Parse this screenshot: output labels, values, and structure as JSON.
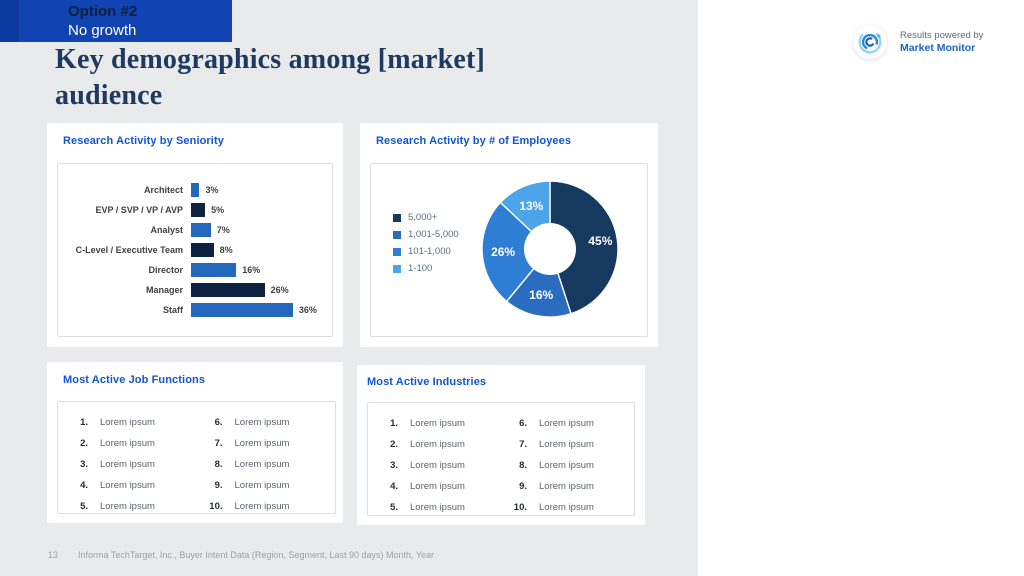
{
  "banner": {
    "title": "Option #2",
    "subtitle": "No growth"
  },
  "page_title": "Key demographics among [market] audience",
  "powered_by": {
    "prefix": "Results powered by",
    "brand": "Market Monitor"
  },
  "cards": {
    "seniority": {
      "title": "Research Activity by Seniority"
    },
    "employees": {
      "title": "Research Activity by # of Employees"
    },
    "job_functions": {
      "title": "Most Active Job Functions",
      "items": [
        {
          "n": "1.",
          "label": "Lorem ipsum"
        },
        {
          "n": "2.",
          "label": "Lorem ipsum"
        },
        {
          "n": "3.",
          "label": "Lorem ipsum"
        },
        {
          "n": "4.",
          "label": "Lorem ipsum"
        },
        {
          "n": "5.",
          "label": "Lorem ipsum"
        },
        {
          "n": "6.",
          "label": "Lorem ipsum"
        },
        {
          "n": "7.",
          "label": "Lorem ipsum"
        },
        {
          "n": "8.",
          "label": "Lorem ipsum"
        },
        {
          "n": "9.",
          "label": "Lorem ipsum"
        },
        {
          "n": "10.",
          "label": "Lorem ipsum"
        }
      ]
    },
    "industries": {
      "title": "Most Active Industries",
      "items": [
        {
          "n": "1.",
          "label": "Lorem ipsum"
        },
        {
          "n": "2.",
          "label": "Lorem ipsum"
        },
        {
          "n": "3.",
          "label": "Lorem ipsum"
        },
        {
          "n": "4.",
          "label": "Lorem ipsum"
        },
        {
          "n": "5.",
          "label": "Lorem ipsum"
        },
        {
          "n": "6.",
          "label": "Lorem ipsum"
        },
        {
          "n": "7.",
          "label": "Lorem ipsum"
        },
        {
          "n": "8.",
          "label": "Lorem ipsum"
        },
        {
          "n": "9.",
          "label": "Lorem ipsum"
        },
        {
          "n": "10.",
          "label": "Lorem ipsum"
        }
      ]
    }
  },
  "chart_data": [
    {
      "type": "bar",
      "orientation": "horizontal",
      "title": "Research Activity by Seniority",
      "categories": [
        "Architect",
        "EVP / SVP / VP / AVP",
        "Analyst",
        "C-Level / Executive Team",
        "Director",
        "Manager",
        "Staff"
      ],
      "values": [
        3,
        5,
        7,
        8,
        16,
        26,
        36
      ],
      "value_suffix": "%",
      "data_labels": true,
      "axes_visible": false,
      "xlim": [
        0,
        40
      ],
      "bar_colors_alternating": [
        "#2368bd",
        "#0e2342"
      ]
    },
    {
      "type": "pie",
      "subtype": "donut",
      "title": "Research Activity by # of Employees",
      "labels": [
        "5,000+",
        "1,001-5,000",
        "101-1,000",
        "1-100"
      ],
      "values": [
        45,
        16,
        26,
        13
      ],
      "colors": [
        "#15395f",
        "#2a6cbf",
        "#2d7ed4",
        "#4ca4ea"
      ],
      "value_suffix": "%",
      "legend_position": "left",
      "start_angle_deg": 0,
      "direction": "clockwise"
    }
  ],
  "footer": {
    "page_number": "13",
    "source": "Informa TechTarget, Inc., Buyer Intent Data (Region, Segment, Last 90 days) Month, Year"
  },
  "colors": {
    "slide_background": "#e9eaeb",
    "right_margin_background": "#ffffff",
    "banner_blue": "#1243b2",
    "card_title_blue": "#1155d4",
    "title_navy": "#1e3a60",
    "bar_medium_blue": "#2368bd",
    "bar_dark_navy": "#0e2342",
    "footer_gray": "#99a1ad",
    "brand_blue": "#1e64c8"
  }
}
